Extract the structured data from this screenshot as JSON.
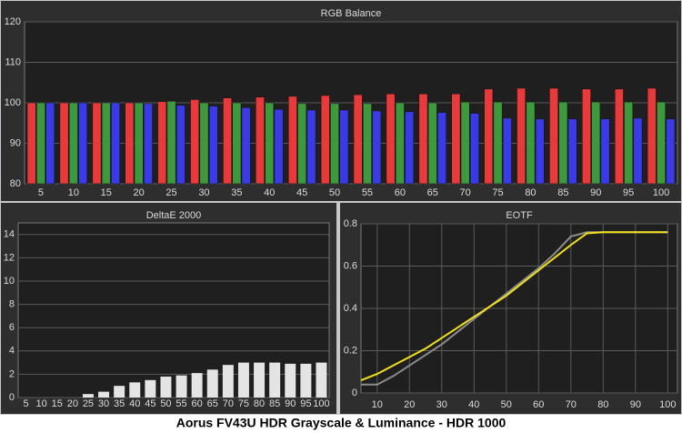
{
  "caption": "Aorus FV43U HDR Grayscale & Luminance - HDR 1000",
  "chart_data": [
    {
      "type": "bar",
      "title": "RGB Balance",
      "categories": [
        "5",
        "10",
        "15",
        "20",
        "25",
        "30",
        "35",
        "40",
        "45",
        "50",
        "55",
        "60",
        "65",
        "70",
        "75",
        "80",
        "85",
        "90",
        "95",
        "100"
      ],
      "series": [
        {
          "color": "#e8393b",
          "values": [
            100,
            100,
            100,
            100,
            100.3,
            100.8,
            101.2,
            101.4,
            101.6,
            101.8,
            102,
            102.2,
            102.2,
            102.2,
            103.4,
            103.6,
            103.6,
            103.4,
            103.4,
            103.6
          ]
        },
        {
          "color": "#3c9a3c",
          "values": [
            100,
            100,
            100,
            100,
            100.4,
            100,
            100,
            100,
            99.8,
            99.8,
            99.8,
            100,
            100,
            100.2,
            100.2,
            100.2,
            100.2,
            100.2,
            100.2,
            100.2
          ]
        },
        {
          "color": "#3a3ae6",
          "values": [
            100,
            100,
            100,
            99.8,
            99.4,
            99.2,
            98.8,
            98.4,
            98.2,
            98.2,
            98,
            97.8,
            97.6,
            97.4,
            96.2,
            96,
            96,
            96,
            96.2,
            96
          ]
        }
      ],
      "ylim": [
        80,
        120
      ],
      "yticks": [
        80,
        90,
        100,
        110,
        120
      ],
      "grid": true
    },
    {
      "type": "bar",
      "title": "DeltaE 2000",
      "categories": [
        "5",
        "10",
        "15",
        "20",
        "25",
        "30",
        "35",
        "40",
        "45",
        "50",
        "55",
        "60",
        "65",
        "70",
        "75",
        "80",
        "85",
        "90",
        "95",
        "100"
      ],
      "values": [
        0,
        0,
        0,
        0,
        0.3,
        0.5,
        1.0,
        1.3,
        1.5,
        1.8,
        1.9,
        2.1,
        2.4,
        2.8,
        3.0,
        3.0,
        3.0,
        2.9,
        2.9,
        3.0
      ],
      "color": "#e4e4e4",
      "ylim": [
        0,
        15
      ],
      "yticks": [
        0,
        2,
        4,
        6,
        8,
        10,
        12,
        14
      ],
      "grid": true
    },
    {
      "type": "line",
      "title": "EOTF",
      "x": [
        5,
        10,
        15,
        20,
        25,
        30,
        35,
        40,
        45,
        50,
        55,
        60,
        65,
        70,
        75,
        80,
        85,
        90,
        95,
        100
      ],
      "series": [
        {
          "color": "#8c8c8c",
          "values": [
            0.04,
            0.04,
            0.08,
            0.13,
            0.18,
            0.23,
            0.29,
            0.35,
            0.41,
            0.47,
            0.53,
            0.59,
            0.66,
            0.74,
            0.76,
            0.76,
            0.76,
            0.76,
            0.76,
            0.76
          ]
        },
        {
          "color": "#f2e21c",
          "values": [
            0.06,
            0.09,
            0.13,
            0.17,
            0.21,
            0.26,
            0.31,
            0.36,
            0.41,
            0.46,
            0.52,
            0.58,
            0.64,
            0.7,
            0.755,
            0.76,
            0.76,
            0.76,
            0.76,
            0.76
          ]
        }
      ],
      "xlim": [
        5,
        103
      ],
      "xticks": [
        10,
        20,
        30,
        40,
        50,
        60,
        70,
        80,
        90,
        100
      ],
      "ylim": [
        0,
        0.8
      ],
      "yticks": [
        0,
        0.2,
        0.4,
        0.6,
        0.8
      ],
      "grid": true
    }
  ]
}
